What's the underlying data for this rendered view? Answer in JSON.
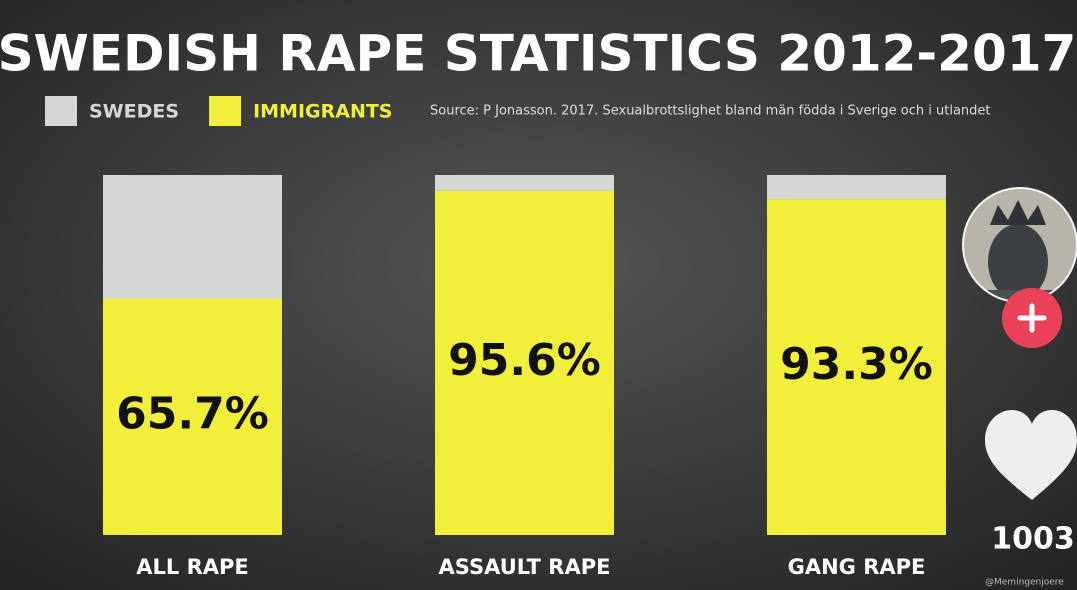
{
  "chart_data": {
    "type": "stacked_bar",
    "title": "SWEDISH RAPE STATISTICS 2012-2017",
    "subtitle": "Source: P Jonasson. 2017. Sexualbrottslighet bland män födda i Sverige och i utlandet",
    "categories": [
      "ALL RAPE",
      "ASSAULT RAPE",
      "GANG RAPE"
    ],
    "series": [
      {
        "name": "SWEDES",
        "color": "#d6d6d6",
        "values": [
          34.3,
          4.4,
          6.7
        ]
      },
      {
        "name": "IMMIGRANTS",
        "color": "#f2ef3a",
        "values": [
          65.7,
          95.6,
          93.3
        ],
        "value_labels": [
          "65.7%",
          "95.6%",
          "93.3%"
        ]
      }
    ],
    "ylim": [
      0,
      100
    ]
  },
  "ui": {
    "like_count": "1003",
    "watermark": "@Memingenjoere"
  }
}
